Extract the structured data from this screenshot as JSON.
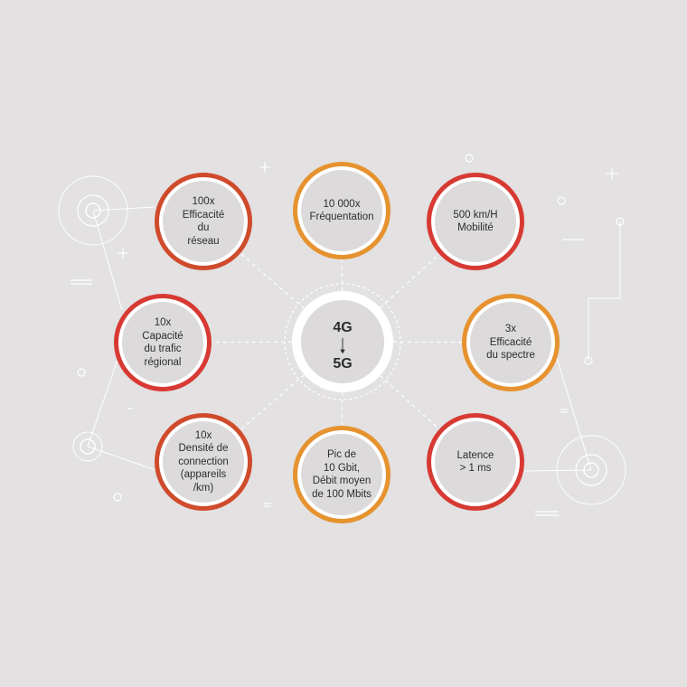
{
  "center": {
    "from": "4G",
    "to": "5G"
  },
  "nodes": [
    {
      "label": "100x\nEfficacité\ndu\nréseau",
      "color": "#cf4b2c"
    },
    {
      "label": "10 000x\nFréquentation",
      "color": "#e6922f"
    },
    {
      "label": "500 km/H\nMobilité",
      "color": "#d73a33"
    },
    {
      "label": "10x\nCapacité\ndu trafic\nrégional",
      "color": "#d73a33"
    },
    {
      "label": "3x\nEfficacité\ndu spectre",
      "color": "#e6922f"
    },
    {
      "label": "10x\nDensité de\nconnection\n(appareils\n/km)",
      "color": "#cf4b2c"
    },
    {
      "label": "Pic de\n10 Gbit,\nDébit moyen\nde 100 Mbits",
      "color": "#e6922f"
    },
    {
      "label": "Latence\n> 1 ms",
      "color": "#d73a33"
    }
  ]
}
